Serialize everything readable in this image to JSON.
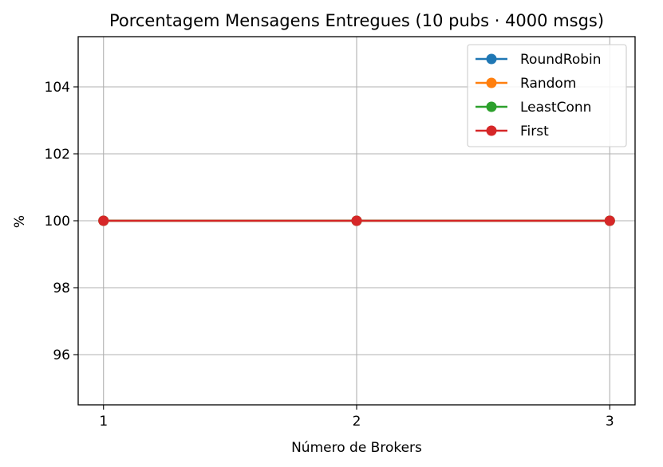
{
  "chart_data": {
    "type": "line",
    "title": "Porcentagem Mensagens Entregues (10 pubs · 4000 msgs)",
    "xlabel": "Número de Brokers",
    "ylabel": "%",
    "x": [
      1,
      2,
      3
    ],
    "x_tick_labels": [
      "1",
      "2",
      "3"
    ],
    "y_ticks": [
      96,
      98,
      100,
      102,
      104
    ],
    "y_tick_labels": [
      "96",
      "98",
      "100",
      "102",
      "104"
    ],
    "xlim": [
      0.9,
      3.1
    ],
    "ylim": [
      94.5,
      105.5
    ],
    "grid": true,
    "legend_position": "top-right",
    "series": [
      {
        "name": "RoundRobin",
        "color": "#1f77b4",
        "values": [
          100,
          100,
          100
        ]
      },
      {
        "name": "Random",
        "color": "#ff7f0e",
        "values": [
          100,
          100,
          100
        ]
      },
      {
        "name": "LeastConn",
        "color": "#2ca02c",
        "values": [
          100,
          100,
          100
        ]
      },
      {
        "name": "First",
        "color": "#d62728",
        "values": [
          100,
          100,
          100
        ]
      }
    ]
  }
}
